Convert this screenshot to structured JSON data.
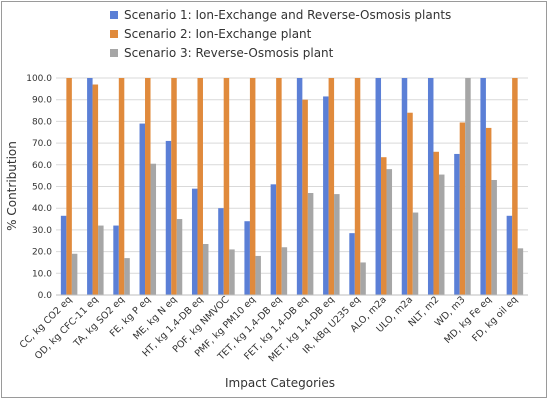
{
  "chart_data": {
    "type": "bar",
    "title": "",
    "xlabel": "Impact Categories",
    "ylabel": "% Contribution",
    "ylim": [
      0,
      100
    ],
    "yticks": [
      "0.0",
      "10.0",
      "20.0",
      "30.0",
      "40.0",
      "50.0",
      "60.0",
      "70.0",
      "80.0",
      "90.0",
      "100.0"
    ],
    "grid": true,
    "legend_position": "top",
    "categories": [
      "CC, kg CO2 eq",
      "OD, kg CFC-11 eq",
      "TA, kg SO2 eq",
      "FE, kg P eq",
      "ME, kg N eq",
      "HT, kg 1,4-DB eq",
      "POF, kg NMVOC",
      "PMF, kg PM10 eq",
      "TET, kg 1,4-DB eq",
      "FET, kg 1,4-DB eq",
      "MET, kg 1,4-DB eq",
      "IR, kBq U235 eq",
      "ALO, m2a",
      "ULO, m2a",
      "NLT, m2",
      "WD, m3",
      "MD, kg Fe eq",
      "FD, kg oil eq"
    ],
    "series": [
      {
        "name": "Scenario 1: Ion-Exchange and Reverse-Osmosis plants",
        "color": "#5b7fd6",
        "values": [
          36.5,
          100,
          32,
          79,
          71,
          49,
          40,
          34,
          51,
          100,
          91.5,
          28.5,
          100,
          100,
          100,
          65,
          100,
          36.5
        ]
      },
      {
        "name": "Scenario 2: Ion-Exchange plant",
        "color": "#e08a3c",
        "values": [
          100,
          97,
          100,
          100,
          100,
          100,
          100,
          100,
          100,
          90,
          100,
          100,
          63.5,
          84,
          66,
          79.5,
          77,
          100
        ]
      },
      {
        "name": "Scenario 3: Reverse-Osmosis plant",
        "color": "#a6a6a6",
        "values": [
          19,
          32,
          17,
          60.5,
          35,
          23.5,
          21,
          18,
          22,
          47,
          46.5,
          15,
          58,
          38,
          55.5,
          100,
          53,
          21.5
        ]
      }
    ]
  }
}
